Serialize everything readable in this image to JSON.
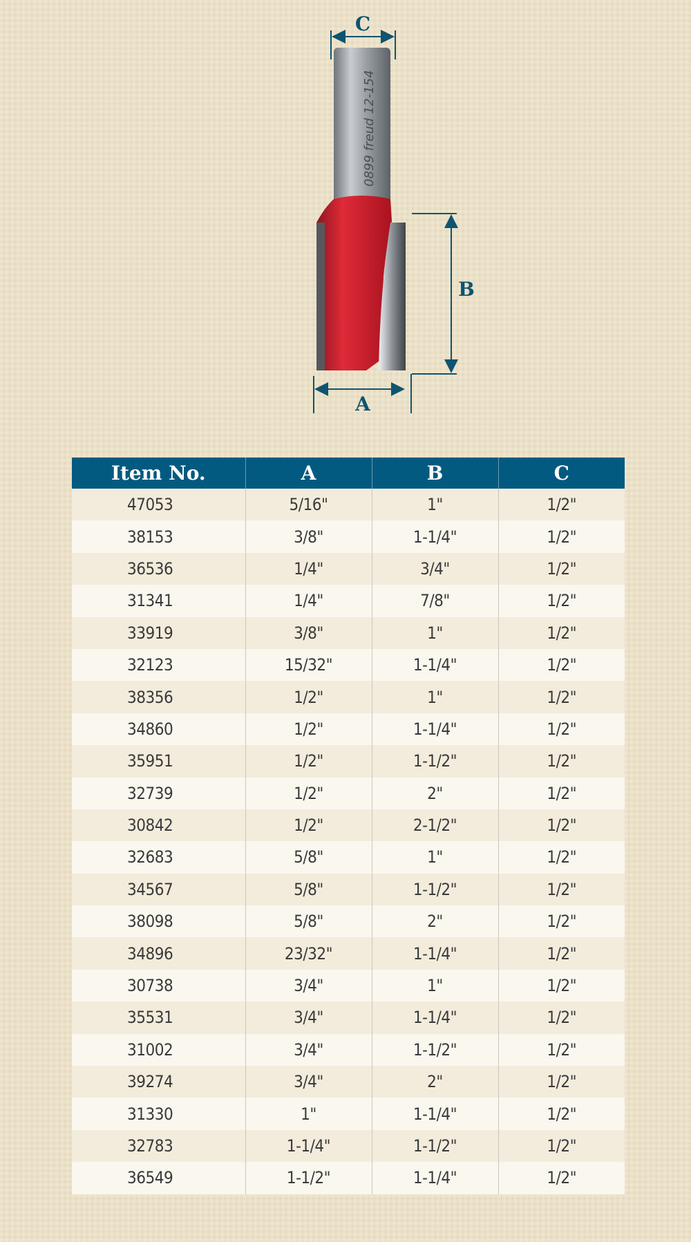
{
  "diagram": {
    "labels": {
      "a": "A",
      "b": "B",
      "c": "C"
    },
    "shank_marking": "0899 freud 12-154",
    "colors": {
      "dimension": "#0f5470",
      "body": "#d0202e",
      "shank": "#9aa0a6"
    }
  },
  "table": {
    "headers": [
      "Item No.",
      "A",
      "B",
      "C"
    ],
    "header_color": "#035a80",
    "rows": [
      [
        "47053",
        "5/16\"",
        "1\"",
        "1/2\""
      ],
      [
        "38153",
        "3/8\"",
        "1-1/4\"",
        "1/2\""
      ],
      [
        "36536",
        "1/4\"",
        "3/4\"",
        "1/2\""
      ],
      [
        "31341",
        "1/4\"",
        "7/8\"",
        "1/2\""
      ],
      [
        "33919",
        "3/8\"",
        "1\"",
        "1/2\""
      ],
      [
        "32123",
        "15/32\"",
        "1-1/4\"",
        "1/2\""
      ],
      [
        "38356",
        "1/2\"",
        "1\"",
        "1/2\""
      ],
      [
        "34860",
        "1/2\"",
        "1-1/4\"",
        "1/2\""
      ],
      [
        "35951",
        "1/2\"",
        "1-1/2\"",
        "1/2\""
      ],
      [
        "32739",
        "1/2\"",
        "2\"",
        "1/2\""
      ],
      [
        "30842",
        "1/2\"",
        "2-1/2\"",
        "1/2\""
      ],
      [
        "32683",
        "5/8\"",
        "1\"",
        "1/2\""
      ],
      [
        "34567",
        "5/8\"",
        "1-1/2\"",
        "1/2\""
      ],
      [
        "38098",
        "5/8\"",
        "2\"",
        "1/2\""
      ],
      [
        "34896",
        "23/32\"",
        "1-1/4\"",
        "1/2\""
      ],
      [
        "30738",
        "3/4\"",
        "1\"",
        "1/2\""
      ],
      [
        "35531",
        "3/4\"",
        "1-1/4\"",
        "1/2\""
      ],
      [
        "31002",
        "3/4\"",
        "1-1/2\"",
        "1/2\""
      ],
      [
        "39274",
        "3/4\"",
        "2\"",
        "1/2\""
      ],
      [
        "31330",
        "1\"",
        "1-1/4\"",
        "1/2\""
      ],
      [
        "32783",
        "1-1/4\"",
        "1-1/2\"",
        "1/2\""
      ],
      [
        "36549",
        "1-1/2\"",
        "1-1/4\"",
        "1/2\""
      ]
    ]
  }
}
